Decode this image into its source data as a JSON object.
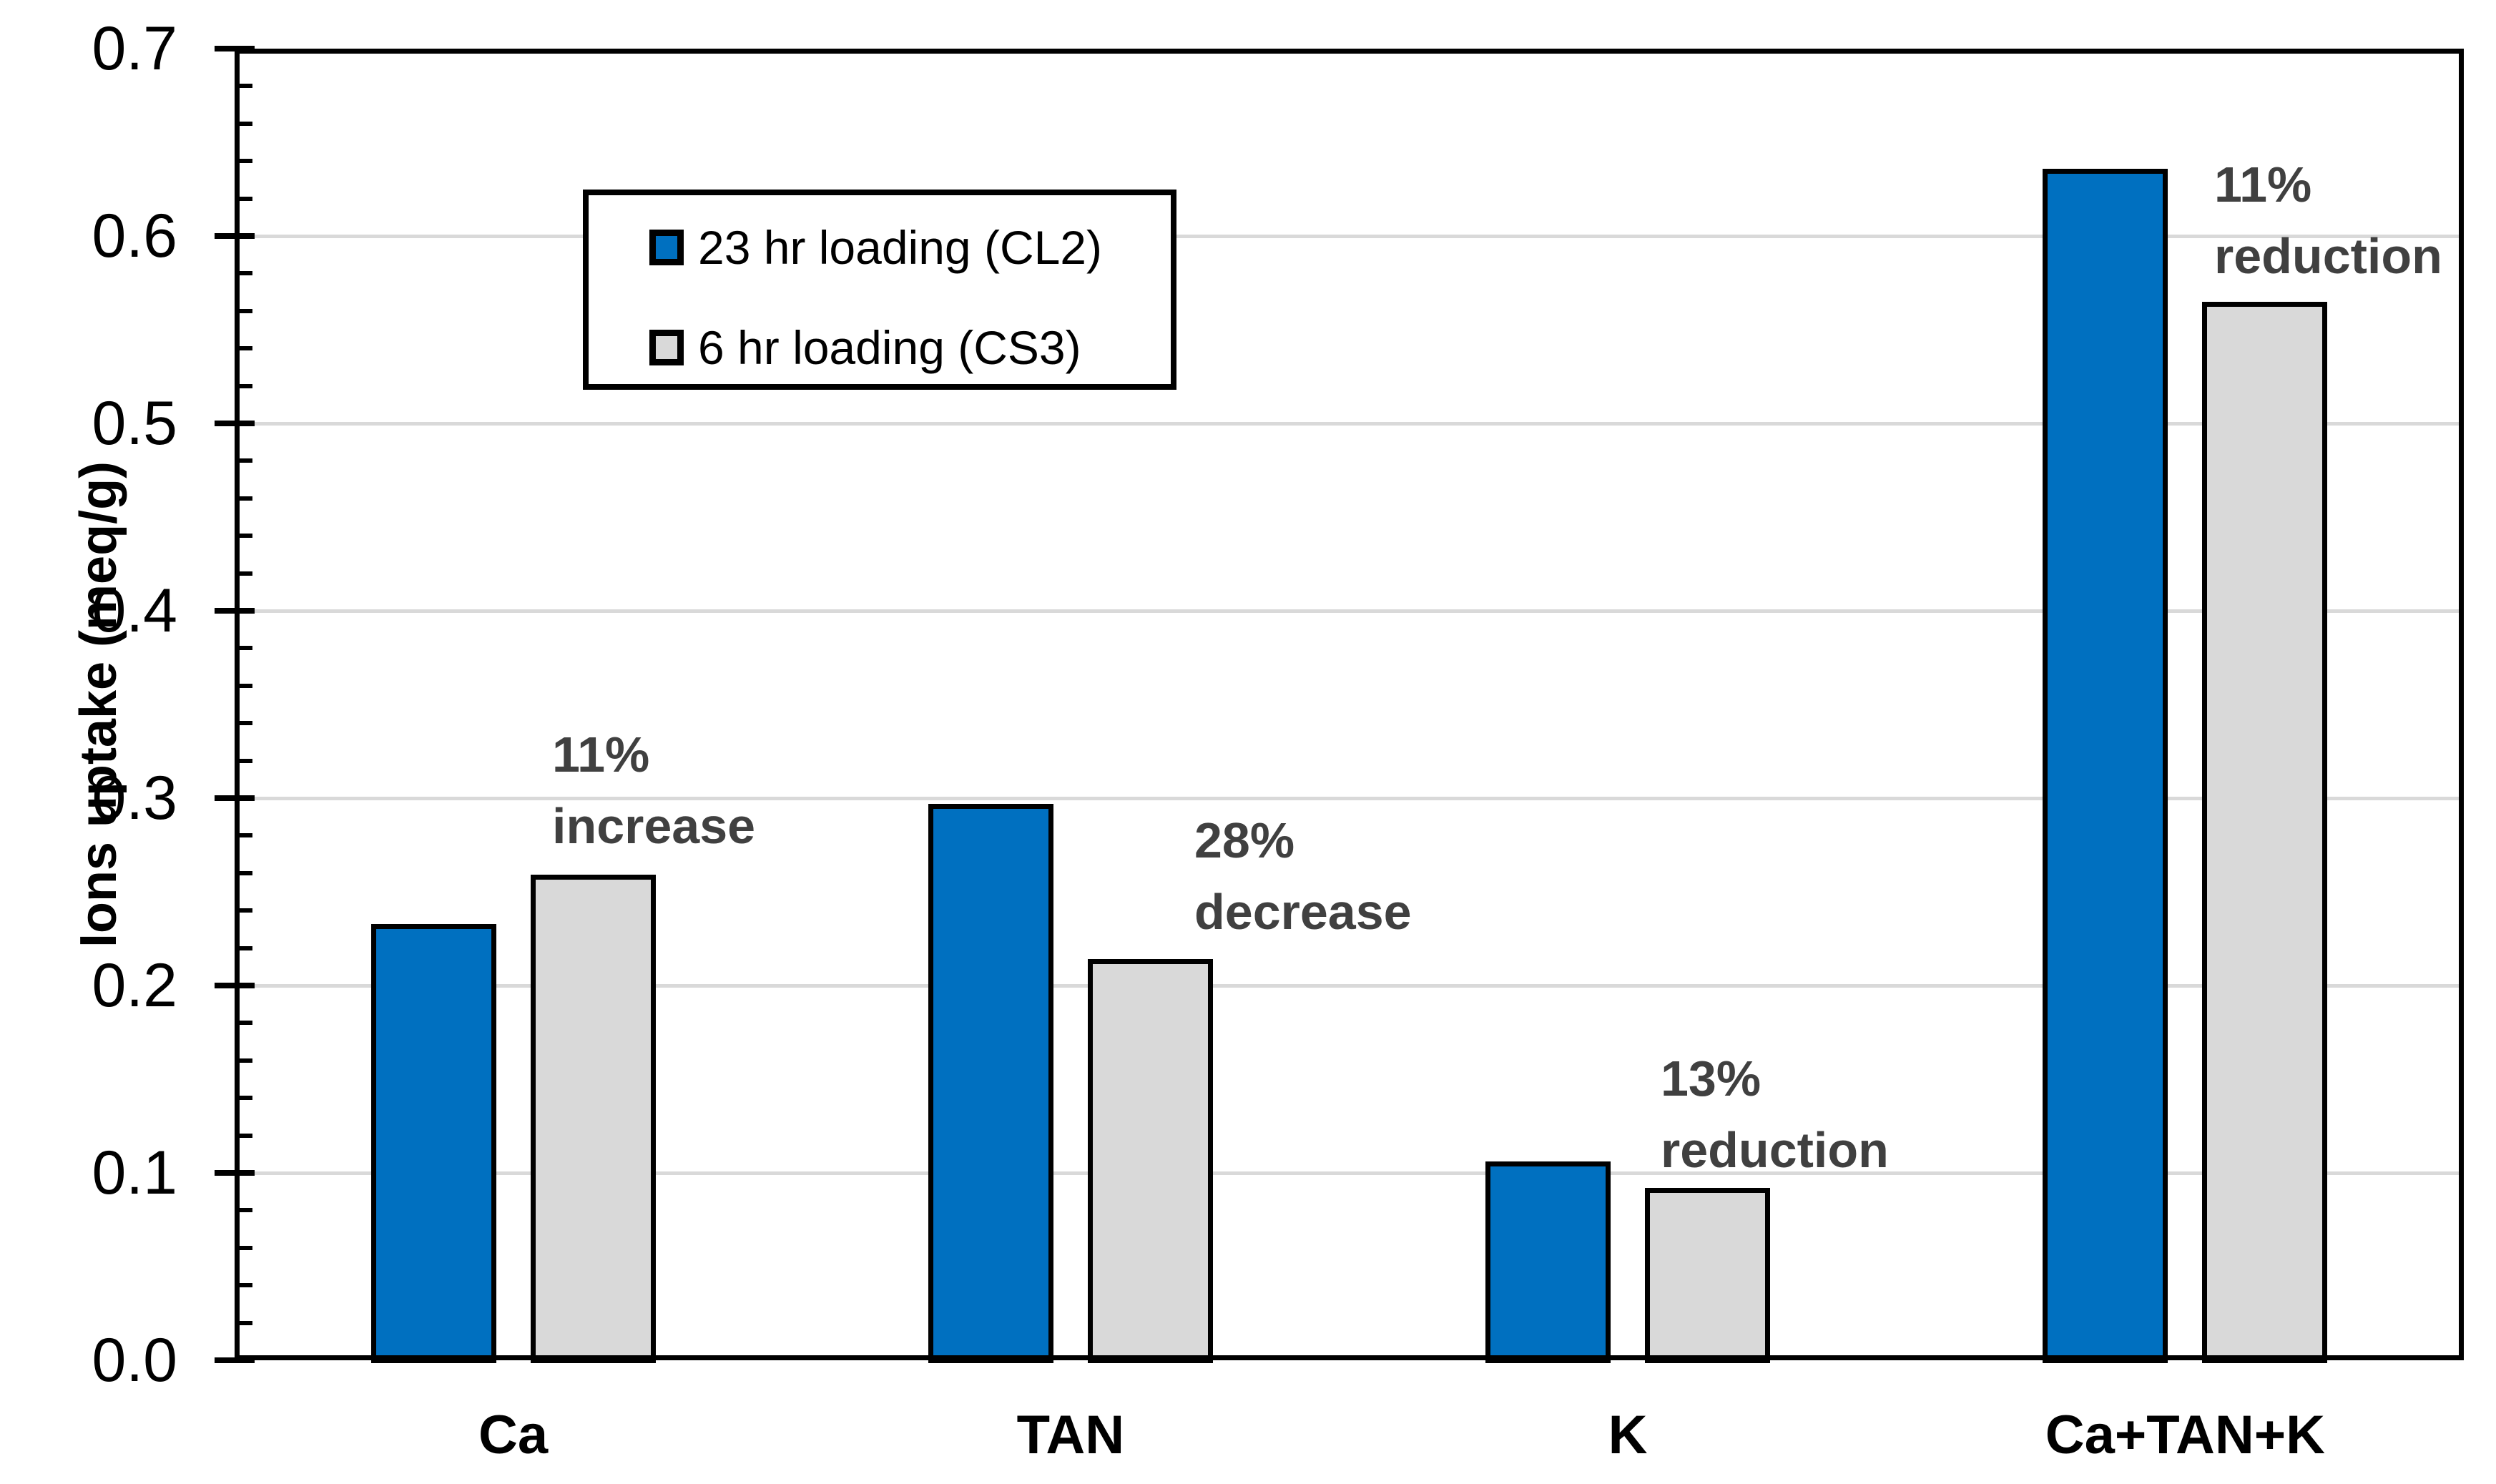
{
  "chart_data": {
    "type": "bar",
    "title": "",
    "ylabel": "Ions uptake (meq/g)",
    "xlabel": "",
    "ylim": [
      0.0,
      0.7
    ],
    "y_major_step": 0.1,
    "y_minor_step": 0.02,
    "y_tick_labels": [
      "0.0",
      "0.1",
      "0.2",
      "0.3",
      "0.4",
      "0.5",
      "0.6",
      "0.7"
    ],
    "grid": "horizontal gridlines at major ticks",
    "legend_position": "top-left inside plot",
    "categories": [
      "Ca",
      "TAN",
      "K",
      "Ca+TAN+K"
    ],
    "series": [
      {
        "name": "23 hr loading (CL2)",
        "color": "#0070C0",
        "values": [
          0.233,
          0.297,
          0.106,
          0.636
        ]
      },
      {
        "name": "6 hr loading (CS3)",
        "color": "#D9D9D9",
        "values": [
          0.259,
          0.214,
          0.092,
          0.565
        ]
      }
    ],
    "annotations": [
      {
        "lines": [
          "11%",
          "increase"
        ],
        "category": "Ca"
      },
      {
        "lines": [
          "28%",
          "decrease"
        ],
        "category": "TAN"
      },
      {
        "lines": [
          "13%",
          "reduction"
        ],
        "category": "K"
      },
      {
        "lines": [
          "11%",
          "reduction"
        ],
        "category": "Ca+TAN+K"
      }
    ],
    "colors": {
      "series1_fill": "#0070C0",
      "series2_fill": "#D9D9D9",
      "bar_outline": "#000000",
      "gridline": "#D9D9D9",
      "axis": "#000000",
      "annotation_text": "#404040",
      "background": "#FFFFFF"
    }
  }
}
